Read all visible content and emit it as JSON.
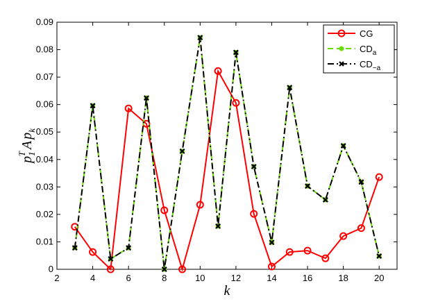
{
  "chart_data": {
    "type": "line",
    "x": [
      3,
      4,
      5,
      6,
      7,
      8,
      9,
      10,
      11,
      12,
      13,
      14,
      15,
      16,
      17,
      18,
      19,
      20
    ],
    "series": [
      {
        "name": "CG",
        "color": "#ff0000",
        "marker": "circle",
        "values": [
          0.0155,
          0.0063,
          0,
          0.0586,
          0.053,
          0.0215,
          0,
          0.0235,
          0.0722,
          0.0606,
          0.0202,
          0.001,
          0.0063,
          0.0068,
          0.004,
          0.0121,
          0.015,
          0.0336
        ]
      },
      {
        "name": "CD",
        "name_subscript": "a",
        "color": "#66dd00",
        "marker": "dot",
        "values": [
          0.0078,
          0.0596,
          0.0038,
          0.0078,
          0.0624,
          0,
          0.043,
          0.0844,
          0.0157,
          0.079,
          0.0374,
          0.0098,
          0.0662,
          0.0303,
          0.0253,
          0.045,
          0.0318,
          0.0048
        ]
      },
      {
        "name": "CD",
        "name_subscript": "−a",
        "color": "#000000",
        "marker": "x",
        "values": [
          0.0078,
          0.0596,
          0.0038,
          0.0078,
          0.0624,
          0,
          0.043,
          0.0844,
          0.0157,
          0.079,
          0.0374,
          0.0098,
          0.0662,
          0.0303,
          0.0253,
          0.045,
          0.0318,
          0.0048
        ]
      }
    ],
    "xlabel": "k",
    "ylabel": [
      "p",
      "1",
      "T",
      "A",
      "p",
      "k"
    ],
    "xlim": [
      2,
      21
    ],
    "xticks": [
      2,
      4,
      6,
      8,
      10,
      12,
      14,
      16,
      18,
      20
    ],
    "ylim": [
      0,
      0.09
    ],
    "yticks": [
      0,
      0.01,
      0.02,
      0.03,
      0.04,
      0.05,
      0.06,
      0.07,
      0.08,
      0.09
    ],
    "legend": "top-right"
  }
}
